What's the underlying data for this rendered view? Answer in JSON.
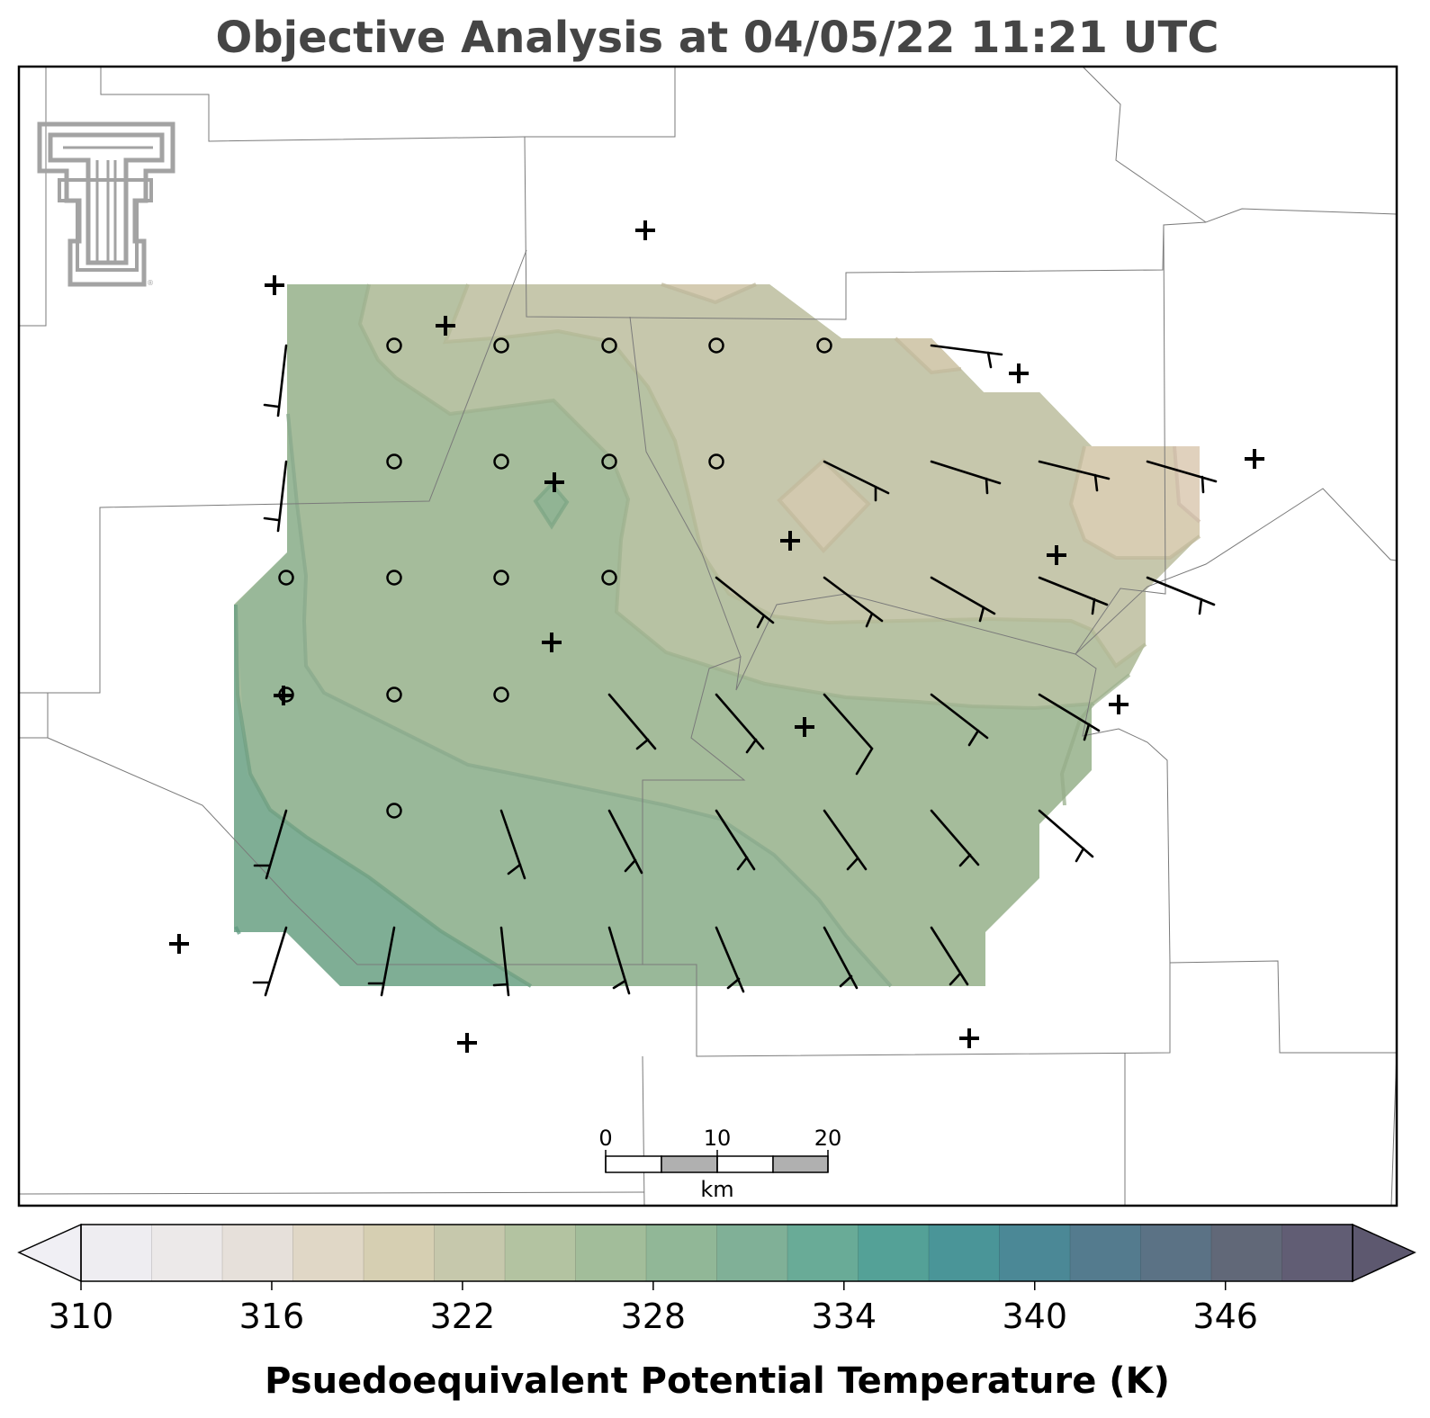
{
  "title": "Objective Analysis at 04/05/22 11:21 UTC",
  "colorbar": {
    "label": "Psuedoequivalent Potential Temperature (K)",
    "ticks": [
      "310",
      "316",
      "322",
      "328",
      "334",
      "340",
      "346"
    ],
    "tick_values": [
      310,
      316,
      322,
      328,
      334,
      340,
      346
    ],
    "min": 310,
    "max": 350,
    "step": 2,
    "extend": "both",
    "colors": [
      "#eeedf1",
      "#ece9e9",
      "#e6e0da",
      "#e0d7c6",
      "#d6cfb2",
      "#c6c8ac",
      "#b3c3a1",
      "#a2bd9a",
      "#91b797",
      "#80b097",
      "#69ab97",
      "#54a197",
      "#4a9598",
      "#4b8896",
      "#547b8e",
      "#5b7285",
      "#616878",
      "#615d74"
    ],
    "under_color": "#f0eff4",
    "over_color": "#5d586f"
  },
  "scalebar": {
    "ticks": [
      "0",
      "10",
      "20"
    ],
    "unit": "km"
  },
  "logo": {
    "name": "Texas Tech Double T"
  },
  "map": {
    "contour_colors": {
      "c318": "#d8cdb3",
      "c320": "#c9c7ab",
      "c322": "#b8c2a4",
      "c324": "#a6bc9c",
      "c326": "#94b597",
      "c328": "#82ae94",
      "c330": "#72a792"
    }
  }
}
